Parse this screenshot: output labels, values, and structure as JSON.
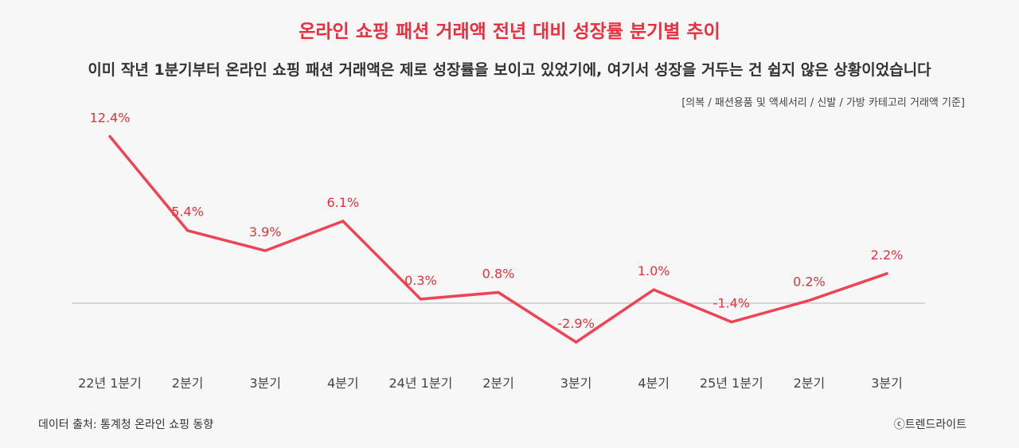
{
  "header": {
    "title": "온라인 쇼핑 패션 거래액 전년 대비 성장률 분기별 추이",
    "subtitle": "이미 작년 1분기부터 온라인 쇼핑 패션 거래액은 제로 성장률을 보이고 있었기에, 여기서 성장을 거두는 건 쉽지 않은 상황이었습니다",
    "scope_note": "[의복 / 패션용품 및 액세서리 / 신발 / 가방 카테고리 거래액 기준]"
  },
  "footer": {
    "source": "데이터 출처: 통계청 온라인 쇼핑 동향",
    "brand": "ⓒ트렌드라이트"
  },
  "colors": {
    "line": "#ee4454",
    "label": "#e8303e",
    "baseline": "#cccccc"
  },
  "chart_data": {
    "type": "line",
    "categories": [
      "22년 1분기",
      "2분기",
      "3분기",
      "4분기",
      "24년 1분기",
      "2분기",
      "3분기",
      "4분기",
      "25년 1분기",
      "2분기",
      "3분기"
    ],
    "series": [
      {
        "values": [
          12.4,
          5.4,
          3.9,
          6.1,
          0.3,
          0.8,
          -2.9,
          1.0,
          -1.4,
          0.2,
          2.2
        ],
        "labels": [
          "12.4%",
          "5.4%",
          "3.9%",
          "6.1%",
          "0.3%",
          "0.8%",
          "-2.9%",
          "1.0%",
          "-1.4%",
          "0.2%",
          "2.2%"
        ]
      }
    ],
    "ylim": [
      -4,
      14
    ],
    "baseline": 0,
    "grid": false,
    "legend": "none"
  }
}
